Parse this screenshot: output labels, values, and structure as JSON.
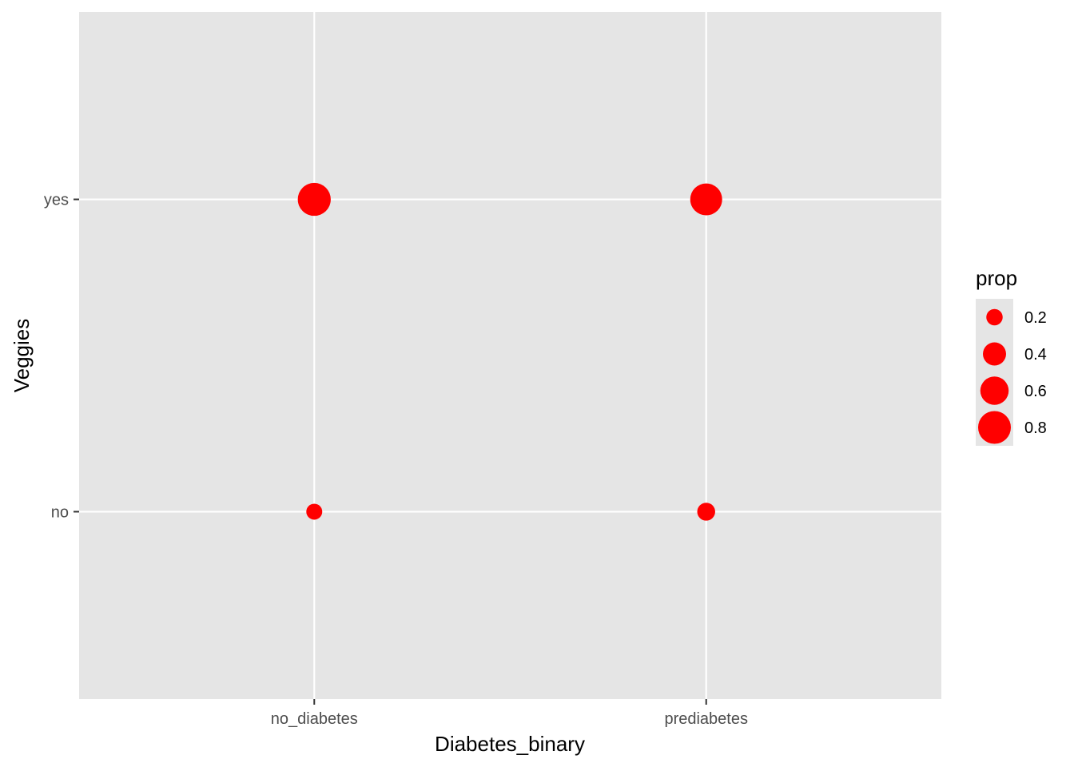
{
  "chart_data": {
    "type": "scatter",
    "title": "",
    "xlabel": "Diabetes_binary",
    "ylabel": "Veggies",
    "x_categories": [
      "no_diabetes",
      "prediabetes"
    ],
    "y_categories": [
      "no",
      "yes"
    ],
    "size_variable": "prop",
    "points": [
      {
        "x": "no_diabetes",
        "y": "yes",
        "prop": 0.81
      },
      {
        "x": "no_diabetes",
        "y": "no",
        "prop": 0.19
      },
      {
        "x": "prediabetes",
        "y": "yes",
        "prop": 0.76
      },
      {
        "x": "prediabetes",
        "y": "no",
        "prop": 0.24
      }
    ],
    "legend": {
      "title": "prop",
      "entries": [
        {
          "label": "0.2",
          "value": 0.2
        },
        {
          "label": "0.4",
          "value": 0.4
        },
        {
          "label": "0.6",
          "value": 0.6
        },
        {
          "label": "0.8",
          "value": 0.8
        }
      ],
      "position": "right"
    },
    "grid": true,
    "colors": {
      "point": "#ff0000",
      "panel_background": "#e5e5e5",
      "grid": "#ffffff",
      "legend_key_background": "#e5e5e5"
    }
  }
}
